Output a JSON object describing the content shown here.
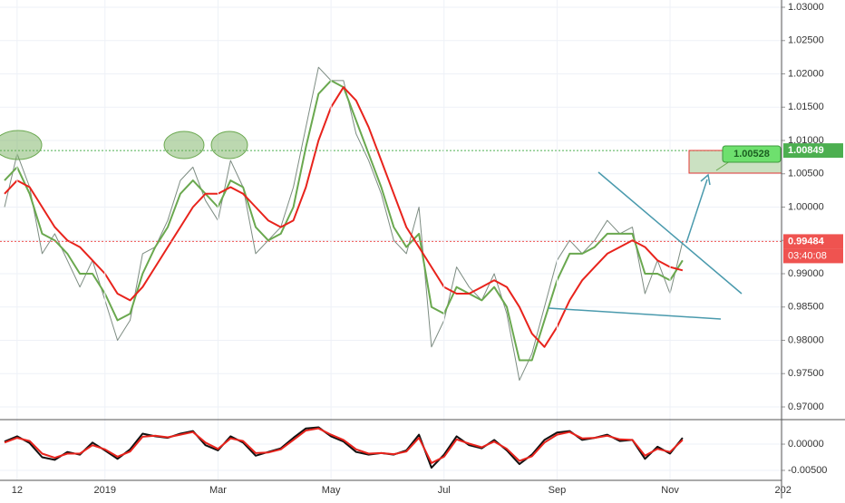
{
  "chart_data": [
    {
      "type": "line",
      "ylim": [
        0.96823,
        1.03109
      ],
      "yticks": [
        {
          "value": 0.97,
          "label": "0.97000"
        },
        {
          "value": 0.975,
          "label": "0.97500"
        },
        {
          "value": 0.98,
          "label": "0.98000"
        },
        {
          "value": 0.985,
          "label": "0.98500"
        },
        {
          "value": 0.99,
          "label": "0.99000"
        },
        {
          "value": 0.995,
          "label": "0.99500"
        },
        {
          "value": 1.0,
          "label": "1.00000"
        },
        {
          "value": 1.005,
          "label": "1.00500"
        },
        {
          "value": 1.01,
          "label": "1.01000"
        },
        {
          "value": 1.015,
          "label": "1.01500"
        },
        {
          "value": 1.02,
          "label": "1.02000"
        },
        {
          "value": 1.025,
          "label": "1.02500"
        },
        {
          "value": 1.03,
          "label": "1.03000"
        }
      ],
      "grid": true,
      "series": [
        {
          "color": "#7d8c82",
          "values": [
            1.0,
            1.008,
            1.003,
            0.993,
            0.996,
            0.992,
            0.988,
            0.992,
            0.986,
            0.98,
            0.983,
            0.993,
            0.994,
            0.998,
            1.004,
            1.006,
            1.001,
            0.998,
            1.007,
            1.003,
            0.993,
            0.995,
            0.997,
            1.003,
            1.012,
            1.021,
            1.019,
            1.019,
            1.011,
            1.007,
            1.002,
            0.995,
            0.993,
            1.0,
            0.979,
            0.983,
            0.991,
            0.988,
            0.986,
            0.99,
            0.984,
            0.974,
            0.978,
            0.985,
            0.992,
            0.995,
            0.993,
            0.995,
            0.998,
            0.996,
            0.997,
            0.987,
            0.992,
            0.987,
            0.9948,
            null,
            null,
            null,
            null,
            null,
            null,
            null,
            null
          ]
        },
        {
          "color": "#6aa84f",
          "values": [
            1.004,
            1.006,
            1.002,
            0.996,
            0.995,
            0.993,
            0.99,
            0.99,
            0.987,
            0.983,
            0.984,
            0.99,
            0.994,
            0.997,
            1.002,
            1.004,
            1.002,
            1.0,
            1.004,
            1.003,
            0.997,
            0.995,
            0.996,
            1.0,
            1.009,
            1.017,
            1.019,
            1.018,
            1.013,
            1.008,
            1.003,
            0.997,
            0.994,
            0.996,
            0.985,
            0.984,
            0.988,
            0.987,
            0.986,
            0.988,
            0.985,
            0.977,
            0.977,
            0.983,
            0.989,
            0.993,
            0.993,
            0.994,
            0.996,
            0.996,
            0.996,
            0.99,
            0.99,
            0.989,
            0.992,
            null,
            null,
            null,
            null,
            null,
            null,
            null,
            null
          ]
        },
        {
          "color": "#e8231c",
          "values": [
            1.002,
            1.004,
            1.003,
            1.0,
            0.997,
            0.995,
            0.994,
            0.992,
            0.99,
            0.987,
            0.986,
            0.988,
            0.991,
            0.994,
            0.997,
            1.0,
            1.002,
            1.002,
            1.003,
            1.002,
            1.0,
            0.998,
            0.997,
            0.998,
            1.003,
            1.01,
            1.015,
            1.018,
            1.016,
            1.012,
            1.007,
            1.002,
            0.997,
            0.994,
            0.991,
            0.988,
            0.987,
            0.987,
            0.988,
            0.989,
            0.988,
            0.985,
            0.981,
            0.979,
            0.982,
            0.986,
            0.989,
            0.991,
            0.993,
            0.994,
            0.995,
            0.994,
            0.992,
            0.991,
            0.9905,
            null,
            null,
            null,
            null,
            null,
            null,
            null,
            null
          ]
        }
      ],
      "price_lines": [
        {
          "value": 1.00849,
          "label": "1.00849",
          "color": "#4caf50"
        },
        {
          "value": 0.99484,
          "label": "0.99484",
          "color": "#ef5350"
        }
      ],
      "countdown": "03:40:08",
      "target_label": "1.00528"
    },
    {
      "type": "line",
      "categories": [
        null,
        "12",
        null,
        null,
        null,
        null,
        null,
        null,
        "2019",
        null,
        null,
        null,
        null,
        null,
        null,
        null,
        null,
        "Mar",
        null,
        null,
        null,
        null,
        null,
        null,
        null,
        null,
        "May",
        null,
        null,
        null,
        null,
        null,
        null,
        null,
        null,
        "Jul",
        null,
        null,
        null,
        null,
        null,
        null,
        null,
        null,
        "Sep",
        null,
        null,
        null,
        null,
        null,
        null,
        null,
        null,
        "Nov",
        null,
        null,
        null,
        null,
        null,
        null,
        null,
        null,
        "202"
      ],
      "ylim": [
        -0.0069,
        0.0045
      ],
      "yticks": [
        {
          "value": 0,
          "label": "0.00000"
        },
        {
          "value": -0.005,
          "label": "-0.00500"
        }
      ],
      "grid": true,
      "series": [
        {
          "color": "#111111",
          "values": [
            0.0005,
            0.0015,
            0.0002,
            -0.0025,
            -0.003,
            -0.0015,
            -0.002,
            0.0003,
            -0.0012,
            -0.0028,
            -0.001,
            0.002,
            0.0015,
            0.0012,
            0.002,
            0.0025,
            -0.0002,
            -0.0012,
            0.0015,
            0.0003,
            -0.0022,
            -0.0015,
            -0.0008,
            0.0012,
            0.003,
            0.0032,
            0.0015,
            0.0005,
            -0.0015,
            -0.002,
            -0.0017,
            -0.002,
            -0.0012,
            0.0018,
            -0.0045,
            -0.002,
            0.0015,
            -0.0002,
            -0.0008,
            0.0008,
            -0.0012,
            -0.0038,
            -0.002,
            0.0008,
            0.0022,
            0.0025,
            0.0008,
            0.0012,
            0.0018,
            0.0006,
            0.0008,
            -0.0028,
            -0.0005,
            -0.0018,
            0.0012,
            null,
            null,
            null,
            null,
            null,
            null,
            null,
            null
          ]
        },
        {
          "color": "#e8231c",
          "values": [
            0.0003,
            0.0012,
            0.0006,
            -0.0018,
            -0.0026,
            -0.0018,
            -0.0018,
            -0.0002,
            -0.001,
            -0.0024,
            -0.0014,
            0.0014,
            0.0016,
            0.0013,
            0.0018,
            0.0023,
            0.0003,
            -0.0009,
            0.0011,
            0.0006,
            -0.0017,
            -0.0016,
            -0.001,
            0.0008,
            0.0026,
            0.003,
            0.0018,
            0.0008,
            -0.001,
            -0.0018,
            -0.0017,
            -0.0019,
            -0.0014,
            0.0012,
            -0.0036,
            -0.0024,
            0.0009,
            0.0001,
            -0.0006,
            0.0005,
            -0.0009,
            -0.0032,
            -0.0023,
            0.0003,
            0.0018,
            0.0023,
            0.0011,
            0.0012,
            0.0016,
            0.0009,
            0.0008,
            -0.0022,
            -0.0009,
            -0.0015,
            0.0008,
            null,
            null,
            null,
            null,
            null,
            null,
            null,
            null
          ]
        }
      ]
    }
  ]
}
